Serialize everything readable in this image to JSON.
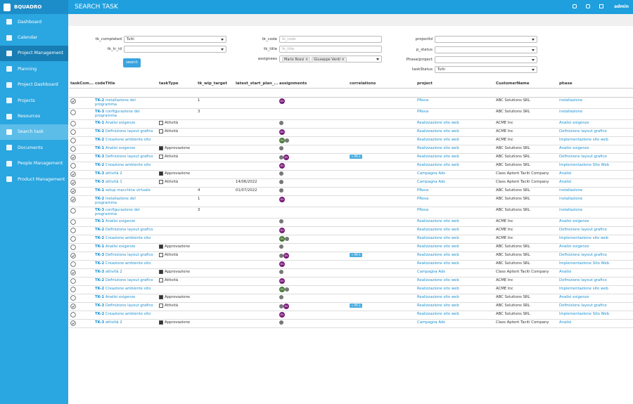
{
  "topbar": {
    "brand": "BQUADRO",
    "title": "SEARCH TASK",
    "user": "admin"
  },
  "sidebar": {
    "items": [
      "Dashboard",
      "Calendar",
      "Project Management",
      "Planning",
      "Project Dashboard",
      "Projects",
      "Resources",
      "Search task",
      "Documents",
      "People Management",
      "Product Management"
    ],
    "active": "Project Management",
    "current": "Search task"
  },
  "filters": {
    "tk_completed": {
      "label": "tk_completed",
      "value": "Tutti"
    },
    "tk_tr_id": {
      "label": "tk_tr_id"
    },
    "search": "search",
    "tk_code": {
      "label": "tk_code",
      "placeholder": "tk_code"
    },
    "tk_title": {
      "label": "tk_title",
      "placeholder": "tk_title"
    },
    "assignees": {
      "label": "assignees",
      "tags": [
        "Mario Rossi",
        "Giuseppe Verdi"
      ]
    },
    "projectId": {
      "label": "projectId"
    },
    "p_status": {
      "label": "p_status"
    },
    "phase_project": {
      "label": "Phase/project"
    },
    "taskStatus": {
      "label": "taskStatus",
      "value": "Tutti"
    }
  },
  "table": {
    "headers": [
      "taskCom...",
      "codeTitle",
      "taskType",
      "tk_wip_target",
      "latest_start_plan_...",
      "assignments",
      "correlations",
      "project",
      "CustomerName",
      "phase"
    ],
    "rows": [
      {
        "done": true,
        "code": "TK-2",
        "title": "installazione del programma",
        "wip": "1",
        "assign": [
          "DV"
        ],
        "project": "PRova",
        "customer": "ABC Solutions SRL",
        "phase": "installazione"
      },
      {
        "done": false,
        "code": "TK-3",
        "title": "configurazione del programma",
        "wip": "3",
        "project": "PRova",
        "customer": "ABC Solutions SRL",
        "phase": "installazione"
      },
      {
        "done": false,
        "code": "TK-1",
        "title": "Analisi esigenze",
        "type": "Attività",
        "photo": true,
        "project": "Realizzazione sito web",
        "customer": "ACME Inc",
        "phase": "Analisi esigenze"
      },
      {
        "done": false,
        "code": "TK-2",
        "title": "Definizione layout grafico",
        "type": "Attività",
        "assign": [
          "DV"
        ],
        "project": "Realizzazione sito web",
        "customer": "ACME Inc",
        "phase": "Definizione layout grafico"
      },
      {
        "done": false,
        "code": "TK-2",
        "title": "Creazione ambiente sito",
        "assign": [
          "GV"
        ],
        "photo": true,
        "project": "Realizzazione sito web",
        "customer": "ACME Inc",
        "phase": "Implementazione sito web"
      },
      {
        "done": false,
        "code": "TK-1",
        "title": "Analisi esigenze",
        "type": "Approvazione",
        "photo": true,
        "project": "Realizzazione sito web",
        "customer": "ABC Solutions SRL",
        "phase": "Analisi esigenze"
      },
      {
        "done": true,
        "code": "TK-3",
        "title": "Definizione layout grafico",
        "type": "Attività",
        "photo": true,
        "assign": [
          "DV"
        ],
        "corr": "PR-1",
        "project": "Realizzazione sito web",
        "customer": "ABC Solutions SRL",
        "phase": "Definizione layout grafico"
      },
      {
        "done": false,
        "code": "TK-2",
        "title": "Creazione ambiente sito",
        "assign": [
          "DV"
        ],
        "project": "Realizzazione sito web",
        "customer": "ABC Solutions SRL",
        "phase": "Implementazione Sito Web"
      },
      {
        "done": true,
        "code": "TK-3",
        "title": "attività 2",
        "type": "Approvazione",
        "photo": true,
        "project": "Campagna Ads",
        "customer": "Class Aptent Taciti Company",
        "phase": "Analisi"
      },
      {
        "done": true,
        "code": "TK-3",
        "title": "attività 1",
        "type": "Attività",
        "start": "14/06/2022",
        "photo": true,
        "project": "Campagna Ads",
        "customer": "Class Aptent Taciti Company",
        "phase": "Analisi"
      },
      {
        "done": true,
        "code": "TK-1",
        "title": "setup macchina virtuale",
        "wip": "4",
        "start": "01/07/2022",
        "photo": true,
        "project": "PRova",
        "customer": "ABC Solutions SRL",
        "phase": "installazione"
      },
      {
        "done": true,
        "code": "TK-2",
        "title": "installazione del programma",
        "wip": "1",
        "assign": [
          "DV"
        ],
        "project": "PRova",
        "customer": "ABC Solutions SRL",
        "phase": "installazione"
      },
      {
        "done": false,
        "code": "TK-3",
        "title": "configurazione del programma",
        "wip": "3",
        "project": "PRova",
        "customer": "ABC Solutions SRL",
        "phase": "installazione"
      },
      {
        "done": false,
        "code": "TK-1",
        "title": "Analisi esigenze",
        "photo": true,
        "project": "Realizzazione sito web",
        "customer": "ACME Inc",
        "phase": "Analisi esigenze"
      },
      {
        "done": false,
        "code": "TK-2",
        "title": "Definizione layout grafico",
        "assign": [
          "DV"
        ],
        "project": "Realizzazione sito web",
        "customer": "ACME Inc",
        "phase": "Definizione layout grafico"
      },
      {
        "done": false,
        "code": "TK-2",
        "title": "Creazione ambiente sito",
        "assign": [
          "GV"
        ],
        "photo": true,
        "project": "Realizzazione sito web",
        "customer": "ACME Inc",
        "phase": "Implementazione sito web"
      },
      {
        "done": false,
        "code": "TK-1",
        "title": "Analisi esigenze",
        "type": "Approvazione",
        "photo": true,
        "project": "Realizzazione sito web",
        "customer": "ABC Solutions SRL",
        "phase": "Analisi esigenze"
      },
      {
        "done": true,
        "code": "TK-3",
        "title": "Definizione layout grafico",
        "type": "Attività",
        "photo": true,
        "assign": [
          "DV"
        ],
        "corr": "PR-1",
        "project": "Realizzazione sito web",
        "customer": "ABC Solutions SRL",
        "phase": "Definizione layout grafico"
      },
      {
        "done": false,
        "code": "TK-2",
        "title": "Creazione ambiente sito",
        "assign": [
          "DV"
        ],
        "project": "Realizzazione sito web",
        "customer": "ABC Solutions SRL",
        "phase": "Implementazione Sito Web"
      },
      {
        "done": true,
        "code": "TK-3",
        "title": "attività 2",
        "type": "Approvazione",
        "photo": true,
        "project": "Campagna Ads",
        "customer": "Class Aptent Taciti Company",
        "phase": "Analisi"
      },
      {
        "done": false,
        "code": "TK-2",
        "title": "Definizione layout grafico",
        "type": "Attività",
        "assign": [
          "DV"
        ],
        "project": "Realizzazione sito web",
        "customer": "ACME Inc",
        "phase": "Definizione layout grafico"
      },
      {
        "done": false,
        "code": "TK-2",
        "title": "Creazione ambiente sito",
        "assign": [
          "GV"
        ],
        "photo": true,
        "project": "Realizzazione sito web",
        "customer": "ACME Inc",
        "phase": "Implementazione sito web"
      },
      {
        "done": false,
        "code": "TK-1",
        "title": "Analisi esigenze",
        "type": "Approvazione",
        "photo": true,
        "project": "Realizzazione sito web",
        "customer": "ABC Solutions SRL",
        "phase": "Analisi esigenze"
      },
      {
        "done": true,
        "code": "TK-3",
        "title": "Definizione layout grafico",
        "type": "Attività",
        "photo": true,
        "assign": [
          "DV"
        ],
        "corr": "PR-1",
        "project": "Realizzazione sito web",
        "customer": "ABC Solutions SRL",
        "phase": "Definizione layout grafico"
      },
      {
        "done": false,
        "code": "TK-2",
        "title": "Creazione ambiente sito",
        "assign": [
          "DV"
        ],
        "project": "Realizzazione sito web",
        "customer": "ABC Solutions SRL",
        "phase": "Implementazione Sito Web"
      },
      {
        "done": true,
        "code": "TK-3",
        "title": "attività 2",
        "type": "Approvazione",
        "photo": true,
        "project": "Campagna Ads",
        "customer": "Class Aptent Taciti Company",
        "phase": "Analisi"
      }
    ]
  }
}
